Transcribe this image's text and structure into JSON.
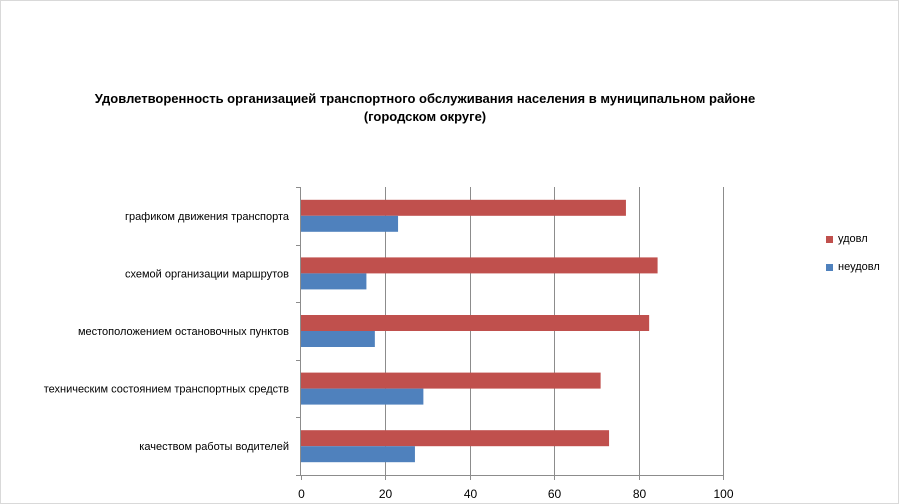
{
  "chart_data": {
    "type": "bar",
    "orientation": "horizontal",
    "title": [
      "Удовлетворенность организацией транспортного обслуживания населения в муниципальном районе",
      "(городском округе)"
    ],
    "categories": [
      "графиком движения  транспорта",
      "схемой организации маршрутов",
      "местоположением  остановочных пунктов",
      "техническим  состоянием транспортных средств",
      "качеством  работы водителей"
    ],
    "series": [
      {
        "name": "удовл",
        "color": "#c0504d",
        "values": [
          77,
          84.5,
          82.5,
          71,
          73
        ]
      },
      {
        "name": "неудовл",
        "color": "#4f81bd",
        "values": [
          23,
          15.5,
          17.5,
          29,
          27
        ]
      }
    ],
    "xlim": [
      0,
      100
    ],
    "xticks": [
      0,
      20,
      40,
      60,
      80,
      100
    ],
    "grid": true,
    "legend_position": "right"
  }
}
